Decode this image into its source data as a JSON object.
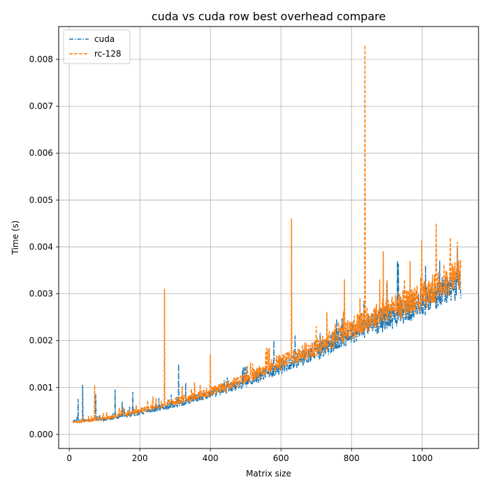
{
  "chart_data": {
    "type": "line",
    "title": "cuda vs cuda row best overhead compare",
    "xlabel": "Matrix size",
    "ylabel": "Time (s)",
    "xlim": [
      -30,
      1160
    ],
    "ylim": [
      -0.0003,
      0.0087
    ],
    "x_ticks": [
      0,
      200,
      400,
      600,
      800,
      1000
    ],
    "x_tick_labels": [
      "0",
      "200",
      "400",
      "600",
      "800",
      "1000"
    ],
    "y_ticks": [
      0.0,
      0.001,
      0.002,
      0.003,
      0.004,
      0.005,
      0.006,
      0.007,
      0.008
    ],
    "y_tick_labels": [
      "0.000",
      "0.001",
      "0.002",
      "0.003",
      "0.004",
      "0.005",
      "0.006",
      "0.007",
      "0.008"
    ],
    "grid": true,
    "legend_position": "top-left",
    "x_range": [
      10,
      1110
    ],
    "series": [
      {
        "name": "cuda",
        "color": "#1f77b4",
        "dash": "dashdot",
        "baseline": [
          [
            10,
            0.00028
          ],
          [
            100,
            0.00031
          ],
          [
            200,
            0.00045
          ],
          [
            300,
            0.00062
          ],
          [
            400,
            0.00083
          ],
          [
            500,
            0.00108
          ],
          [
            600,
            0.0014
          ],
          [
            700,
            0.0017
          ],
          [
            800,
            0.0021
          ],
          [
            900,
            0.0024
          ],
          [
            1000,
            0.0027
          ],
          [
            1100,
            0.0031
          ]
        ],
        "spikes": [
          [
            25,
            0.00075
          ],
          [
            38,
            0.00105
          ],
          [
            75,
            0.00085
          ],
          [
            130,
            0.00095
          ],
          [
            150,
            0.0007
          ],
          [
            180,
            0.0009
          ],
          [
            310,
            0.0015
          ],
          [
            330,
            0.0011
          ],
          [
            580,
            0.002
          ],
          [
            640,
            0.0021
          ],
          [
            660,
            0.0018
          ],
          [
            880,
            0.0027
          ],
          [
            930,
            0.0037
          ],
          [
            990,
            0.003
          ],
          [
            1010,
            0.0036
          ],
          [
            1050,
            0.0037
          ],
          [
            1100,
            0.004
          ]
        ]
      },
      {
        "name": "rc-128",
        "color": "#ff7f0e",
        "dash": "dashed",
        "baseline": [
          [
            10,
            0.00025
          ],
          [
            100,
            0.00033
          ],
          [
            200,
            0.00049
          ],
          [
            300,
            0.00068
          ],
          [
            400,
            0.00088
          ],
          [
            500,
            0.00115
          ],
          [
            600,
            0.0015
          ],
          [
            700,
            0.0018
          ],
          [
            800,
            0.0022
          ],
          [
            900,
            0.00255
          ],
          [
            1000,
            0.00285
          ],
          [
            1100,
            0.0033
          ]
        ],
        "spikes": [
          [
            72,
            0.00105
          ],
          [
            270,
            0.0031
          ],
          [
            400,
            0.0017
          ],
          [
            520,
            0.0015
          ],
          [
            630,
            0.0046
          ],
          [
            700,
            0.0023
          ],
          [
            730,
            0.0026
          ],
          [
            780,
            0.0033
          ],
          [
            838,
            0.0083
          ],
          [
            880,
            0.0033
          ],
          [
            890,
            0.0039
          ],
          [
            950,
            0.0033
          ],
          [
            1000,
            0.0034
          ],
          [
            1040,
            0.0045
          ],
          [
            1080,
            0.0042
          ],
          [
            1100,
            0.0041
          ]
        ]
      }
    ]
  }
}
